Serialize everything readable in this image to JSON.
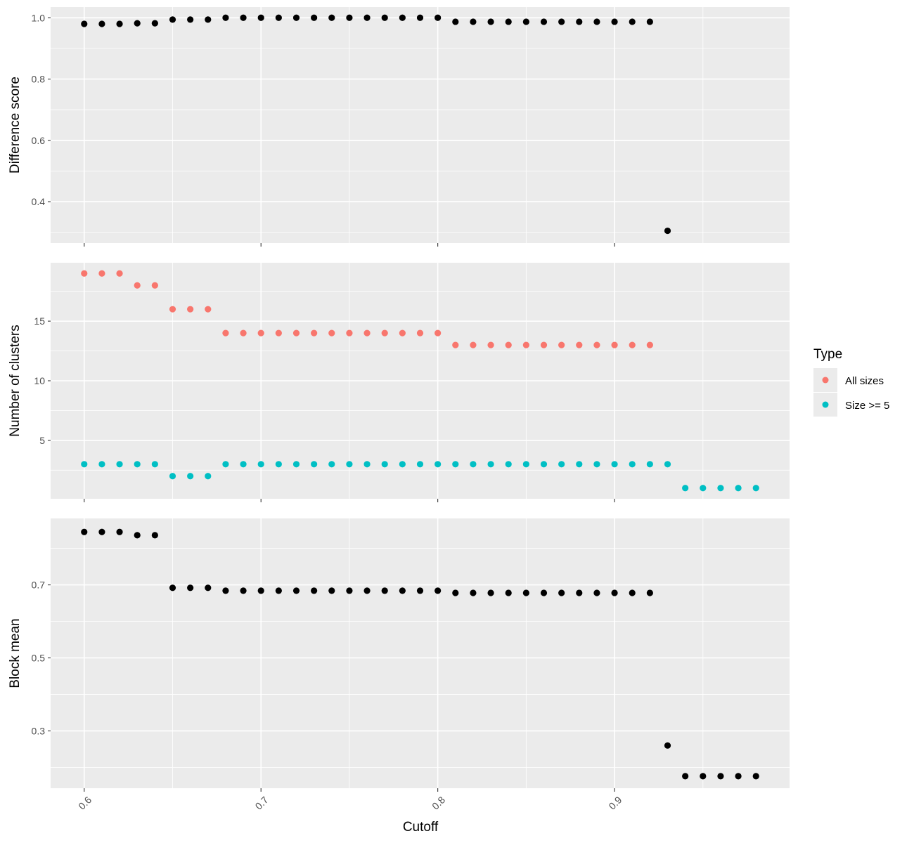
{
  "chart_data": {
    "type": "scatter",
    "xlabel": "Cutoff",
    "x_ticks": [
      "0.6",
      "0.7",
      "0.8",
      "0.9"
    ],
    "xlim": [
      0.581,
      0.999
    ],
    "panels": [
      {
        "ylabel": "Difference score",
        "y_ticks": [
          "0.4",
          "0.6",
          "0.8",
          "1.0"
        ],
        "ylim": [
          0.265,
          1.035
        ],
        "series": [
          {
            "color": "#000000",
            "x": [
              0.6,
              0.61,
              0.62,
              0.63,
              0.64,
              0.65,
              0.66,
              0.67,
              0.68,
              0.69,
              0.7,
              0.71,
              0.72,
              0.73,
              0.74,
              0.75,
              0.76,
              0.77,
              0.78,
              0.79,
              0.8,
              0.81,
              0.82,
              0.83,
              0.84,
              0.85,
              0.86,
              0.87,
              0.88,
              0.89,
              0.9,
              0.91,
              0.92,
              0.93
            ],
            "y": [
              0.98,
              0.98,
              0.98,
              0.982,
              0.982,
              0.994,
              0.994,
              0.994,
              1.0,
              1.0,
              1.0,
              1.0,
              1.0,
              1.0,
              1.0,
              1.0,
              1.0,
              1.0,
              1.0,
              1.0,
              1.0,
              0.987,
              0.987,
              0.987,
              0.987,
              0.987,
              0.987,
              0.987,
              0.987,
              0.987,
              0.987,
              0.987,
              0.987,
              0.305
            ]
          }
        ]
      },
      {
        "ylabel": "Number of clusters",
        "y_ticks": [
          "5",
          "10",
          "15"
        ],
        "ylim": [
          0.1,
          19.9
        ],
        "series": [
          {
            "name": "All sizes",
            "color": "#F8766D",
            "x": [
              0.6,
              0.61,
              0.62,
              0.63,
              0.64,
              0.65,
              0.66,
              0.67,
              0.68,
              0.69,
              0.7,
              0.71,
              0.72,
              0.73,
              0.74,
              0.75,
              0.76,
              0.77,
              0.78,
              0.79,
              0.8,
              0.81,
              0.82,
              0.83,
              0.84,
              0.85,
              0.86,
              0.87,
              0.88,
              0.89,
              0.9,
              0.91,
              0.92
            ],
            "y": [
              19,
              19,
              19,
              18,
              18,
              16,
              16,
              16,
              14,
              14,
              14,
              14,
              14,
              14,
              14,
              14,
              14,
              14,
              14,
              14,
              14,
              13,
              13,
              13,
              13,
              13,
              13,
              13,
              13,
              13,
              13,
              13,
              13
            ]
          },
          {
            "name": "Size >= 5",
            "color": "#00BFC4",
            "x": [
              0.6,
              0.61,
              0.62,
              0.63,
              0.64,
              0.65,
              0.66,
              0.67,
              0.68,
              0.69,
              0.7,
              0.71,
              0.72,
              0.73,
              0.74,
              0.75,
              0.76,
              0.77,
              0.78,
              0.79,
              0.8,
              0.81,
              0.82,
              0.83,
              0.84,
              0.85,
              0.86,
              0.87,
              0.88,
              0.89,
              0.9,
              0.91,
              0.92,
              0.93,
              0.94,
              0.95,
              0.96,
              0.97,
              0.98
            ],
            "y": [
              3,
              3,
              3,
              3,
              3,
              2,
              2,
              2,
              3,
              3,
              3,
              3,
              3,
              3,
              3,
              3,
              3,
              3,
              3,
              3,
              3,
              3,
              3,
              3,
              3,
              3,
              3,
              3,
              3,
              3,
              3,
              3,
              3,
              3,
              1,
              1,
              1,
              1,
              1
            ]
          }
        ]
      },
      {
        "ylabel": "Block mean",
        "y_ticks": [
          "0.3",
          "0.5",
          "0.7"
        ],
        "ylim": [
          0.143,
          0.882
        ],
        "series": [
          {
            "color": "#000000",
            "x": [
              0.6,
              0.61,
              0.62,
              0.63,
              0.64,
              0.65,
              0.66,
              0.67,
              0.68,
              0.69,
              0.7,
              0.71,
              0.72,
              0.73,
              0.74,
              0.75,
              0.76,
              0.77,
              0.78,
              0.79,
              0.8,
              0.81,
              0.82,
              0.83,
              0.84,
              0.85,
              0.86,
              0.87,
              0.88,
              0.89,
              0.9,
              0.91,
              0.92,
              0.93,
              0.94,
              0.95,
              0.96,
              0.97,
              0.98
            ],
            "y": [
              0.845,
              0.845,
              0.845,
              0.836,
              0.836,
              0.692,
              0.692,
              0.692,
              0.684,
              0.684,
              0.684,
              0.684,
              0.684,
              0.684,
              0.684,
              0.684,
              0.684,
              0.684,
              0.684,
              0.684,
              0.684,
              0.678,
              0.678,
              0.678,
              0.678,
              0.678,
              0.678,
              0.678,
              0.678,
              0.678,
              0.678,
              0.678,
              0.678,
              0.26,
              0.176,
              0.176,
              0.176,
              0.176,
              0.176
            ]
          }
        ]
      }
    ],
    "legend": {
      "title": "Type",
      "position": "right",
      "entries": [
        {
          "label": "All sizes",
          "color": "#F8766D"
        },
        {
          "label": "Size >= 5",
          "color": "#00BFC4"
        }
      ]
    }
  }
}
